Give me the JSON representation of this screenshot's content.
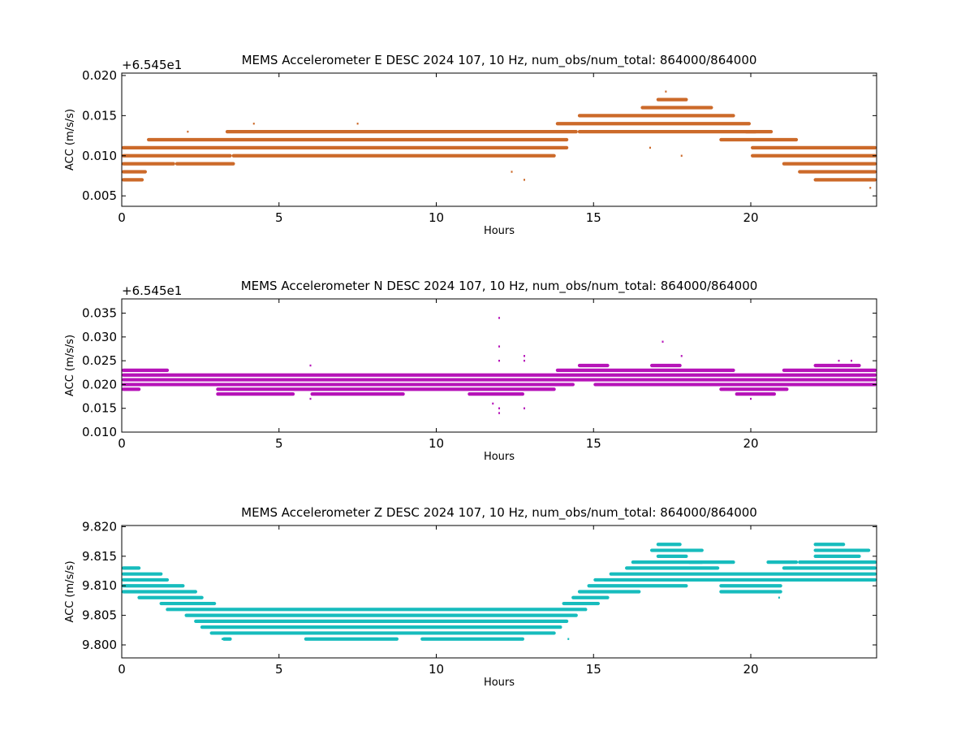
{
  "figure": {
    "background": "#ffffff"
  },
  "chart_data": [
    {
      "type": "scatter",
      "title": "MEMS Accelerometer E DESC 2024 107, 10 Hz, num_obs/num_total: 864000/864000",
      "xlabel": "Hours",
      "ylabel": "ACC (m/s/s)",
      "offset_text": "+6.545e1",
      "color": "#cc6a2a",
      "xlim": [
        0,
        24
      ],
      "ylim": [
        0.0037,
        0.0203
      ],
      "xticks": [
        0,
        5,
        10,
        15,
        20
      ],
      "yticks": [
        0.005,
        0.01,
        0.015,
        0.02
      ],
      "ytick_labels": [
        "0.005",
        "0.010",
        "0.015",
        "0.020"
      ],
      "bands": [
        {
          "y": 0.007,
          "segments": [
            [
              0.0,
              0.7
            ]
          ]
        },
        {
          "y": 0.008,
          "segments": [
            [
              0.0,
              0.8
            ]
          ]
        },
        {
          "y": 0.009,
          "segments": [
            [
              0.0,
              1.7
            ],
            [
              1.7,
              3.6
            ]
          ]
        },
        {
          "y": 0.01,
          "segments": [
            [
              0.0,
              3.5
            ],
            [
              3.5,
              13.8
            ]
          ]
        },
        {
          "y": 0.011,
          "segments": [
            [
              0.0,
              14.2
            ]
          ]
        },
        {
          "y": 0.012,
          "segments": [
            [
              0.8,
              14.2
            ]
          ]
        },
        {
          "y": 0.013,
          "segments": [
            [
              3.3,
              14.5
            ],
            [
              14.5,
              20.2
            ]
          ]
        },
        {
          "y": 0.014,
          "segments": [
            [
              13.8,
              20.0
            ]
          ]
        },
        {
          "y": 0.015,
          "segments": [
            [
              14.5,
              19.5
            ]
          ]
        },
        {
          "y": 0.016,
          "segments": [
            [
              16.5,
              18.8
            ]
          ]
        },
        {
          "y": 0.017,
          "segments": [
            [
              17.0,
              18.0
            ]
          ]
        },
        {
          "y": 0.013,
          "segments": [
            [
              19.8,
              20.7
            ]
          ]
        },
        {
          "y": 0.012,
          "segments": [
            [
              19.0,
              21.5
            ]
          ]
        },
        {
          "y": 0.011,
          "segments": [
            [
              20.0,
              24.0
            ]
          ]
        },
        {
          "y": 0.01,
          "segments": [
            [
              20.0,
              24.0
            ]
          ]
        },
        {
          "y": 0.009,
          "segments": [
            [
              21.0,
              24.0
            ]
          ]
        },
        {
          "y": 0.008,
          "segments": [
            [
              21.5,
              24.0
            ]
          ]
        },
        {
          "y": 0.007,
          "segments": [
            [
              22.0,
              24.0
            ]
          ]
        }
      ],
      "outliers": [
        [
          12.4,
          0.008
        ],
        [
          12.8,
          0.007
        ],
        [
          16.8,
          0.011
        ],
        [
          17.8,
          0.01
        ],
        [
          17.3,
          0.018
        ],
        [
          23.8,
          0.006
        ],
        [
          2.1,
          0.013
        ],
        [
          4.2,
          0.014
        ],
        [
          7.5,
          0.014
        ]
      ]
    },
    {
      "type": "scatter",
      "title": "MEMS Accelerometer N DESC 2024 107, 10 Hz, num_obs/num_total: 864000/864000",
      "xlabel": "Hours",
      "ylabel": "ACC (m/s/s)",
      "offset_text": "+6.545e1",
      "color": "#b613b8",
      "xlim": [
        0,
        24
      ],
      "ylim": [
        0.01,
        0.038
      ],
      "xticks": [
        0,
        5,
        10,
        15,
        20
      ],
      "yticks": [
        0.01,
        0.015,
        0.02,
        0.025,
        0.03,
        0.035
      ],
      "ytick_labels": [
        "0.010",
        "0.015",
        "0.020",
        "0.025",
        "0.030",
        "0.035"
      ],
      "bands": [
        {
          "y": 0.019,
          "segments": [
            [
              0.0,
              0.6
            ],
            [
              3.0,
              13.8
            ]
          ]
        },
        {
          "y": 0.02,
          "segments": [
            [
              0.0,
              14.4
            ]
          ]
        },
        {
          "y": 0.021,
          "segments": [
            [
              0.0,
              24.0
            ]
          ]
        },
        {
          "y": 0.022,
          "segments": [
            [
              0.0,
              24.0
            ]
          ]
        },
        {
          "y": 0.023,
          "segments": [
            [
              0.0,
              1.5
            ],
            [
              13.8,
              19.5
            ],
            [
              21.0,
              24.0
            ]
          ]
        },
        {
          "y": 0.024,
          "segments": [
            [
              14.5,
              15.5
            ],
            [
              16.8,
              17.8
            ],
            [
              22.0,
              23.5
            ]
          ]
        },
        {
          "y": 0.02,
          "segments": [
            [
              15.0,
              24.0
            ]
          ]
        },
        {
          "y": 0.019,
          "segments": [
            [
              19.0,
              21.2
            ]
          ]
        },
        {
          "y": 0.018,
          "segments": [
            [
              19.5,
              20.8
            ]
          ]
        },
        {
          "y": 0.018,
          "segments": [
            [
              3.0,
              5.5
            ],
            [
              6.0,
              9.0
            ],
            [
              11.0,
              12.8
            ]
          ]
        }
      ],
      "outliers": [
        [
          12.0,
          0.034
        ],
        [
          12.0,
          0.028
        ],
        [
          12.0,
          0.025
        ],
        [
          12.8,
          0.026
        ],
        [
          12.8,
          0.025
        ],
        [
          12.0,
          0.015
        ],
        [
          12.0,
          0.014
        ],
        [
          12.8,
          0.015
        ],
        [
          17.2,
          0.029
        ],
        [
          17.8,
          0.026
        ],
        [
          6.0,
          0.024
        ],
        [
          6.0,
          0.017
        ],
        [
          11.8,
          0.016
        ],
        [
          20.0,
          0.017
        ],
        [
          22.8,
          0.025
        ],
        [
          23.2,
          0.025
        ]
      ]
    },
    {
      "type": "scatter",
      "title": "MEMS Accelerometer Z DESC 2024 107, 10 Hz, num_obs/num_total: 864000/864000",
      "xlabel": "Hours",
      "ylabel": "ACC (m/s/s)",
      "offset_text": "",
      "color": "#17bcbd",
      "xlim": [
        0,
        24
      ],
      "ylim": [
        9.7978,
        9.8202
      ],
      "xticks": [
        0,
        5,
        10,
        15,
        20
      ],
      "yticks": [
        9.8,
        9.805,
        9.81,
        9.815,
        9.82
      ],
      "ytick_labels": [
        "9.800",
        "9.805",
        "9.810",
        "9.815",
        "9.820"
      ],
      "bands": [
        {
          "y": 9.813,
          "segments": [
            [
              0.0,
              0.6
            ]
          ]
        },
        {
          "y": 9.812,
          "segments": [
            [
              0.0,
              1.3
            ]
          ]
        },
        {
          "y": 9.811,
          "segments": [
            [
              0.0,
              1.5
            ]
          ]
        },
        {
          "y": 9.81,
          "segments": [
            [
              0.0,
              2.0
            ]
          ]
        },
        {
          "y": 9.809,
          "segments": [
            [
              0.0,
              2.4
            ]
          ]
        },
        {
          "y": 9.808,
          "segments": [
            [
              0.5,
              2.6
            ]
          ]
        },
        {
          "y": 9.807,
          "segments": [
            [
              1.2,
              3.0
            ]
          ]
        },
        {
          "y": 9.806,
          "segments": [
            [
              1.4,
              14.8
            ]
          ]
        },
        {
          "y": 9.805,
          "segments": [
            [
              2.0,
              14.5
            ]
          ]
        },
        {
          "y": 9.804,
          "segments": [
            [
              2.3,
              14.2
            ]
          ]
        },
        {
          "y": 9.803,
          "segments": [
            [
              2.5,
              14.0
            ]
          ]
        },
        {
          "y": 9.802,
          "segments": [
            [
              2.8,
              13.8
            ]
          ]
        },
        {
          "y": 9.801,
          "segments": [
            [
              3.2,
              3.5
            ],
            [
              5.8,
              8.8
            ],
            [
              9.5,
              12.8
            ]
          ]
        },
        {
          "y": 9.807,
          "segments": [
            [
              14.0,
              15.2
            ]
          ]
        },
        {
          "y": 9.808,
          "segments": [
            [
              14.3,
              15.5
            ]
          ]
        },
        {
          "y": 9.809,
          "segments": [
            [
              14.5,
              16.5
            ]
          ]
        },
        {
          "y": 9.81,
          "segments": [
            [
              14.8,
              18.0
            ],
            [
              19.0,
              21.0
            ]
          ]
        },
        {
          "y": 9.811,
          "segments": [
            [
              15.0,
              24.0
            ]
          ]
        },
        {
          "y": 9.812,
          "segments": [
            [
              15.5,
              24.0
            ]
          ]
        },
        {
          "y": 9.813,
          "segments": [
            [
              16.0,
              19.0
            ],
            [
              21.0,
              24.0
            ]
          ]
        },
        {
          "y": 9.814,
          "segments": [
            [
              16.2,
              18.5
            ],
            [
              21.5,
              24.0
            ]
          ]
        },
        {
          "y": 9.815,
          "segments": [
            [
              17.0,
              18.0
            ],
            [
              22.0,
              23.5
            ]
          ]
        },
        {
          "y": 9.816,
          "segments": [
            [
              16.8,
              18.5
            ],
            [
              22.0,
              23.8
            ]
          ]
        },
        {
          "y": 9.817,
          "segments": [
            [
              17.0,
              17.8
            ],
            [
              22.0,
              23.0
            ]
          ]
        },
        {
          "y": 9.809,
          "segments": [
            [
              19.0,
              21.0
            ]
          ]
        },
        {
          "y": 9.814,
          "segments": [
            [
              18.0,
              19.5
            ],
            [
              20.5,
              21.5
            ]
          ]
        }
      ],
      "outliers": [
        [
          20.9,
          9.808
        ],
        [
          3.2,
          9.801
        ],
        [
          14.2,
          9.801
        ]
      ]
    }
  ]
}
